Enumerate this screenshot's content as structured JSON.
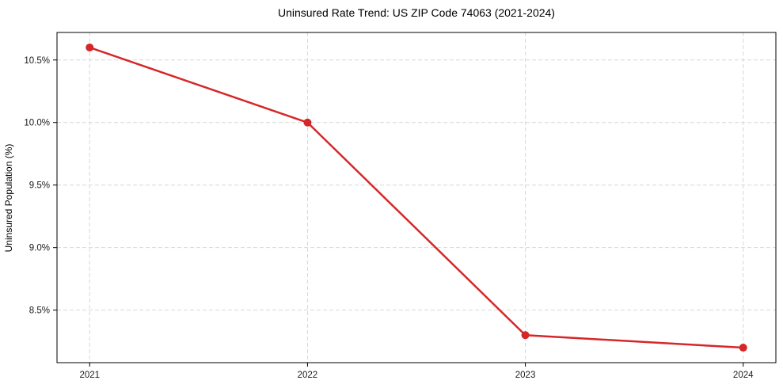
{
  "chart_data": {
    "type": "line",
    "title": "Uninsured Rate Trend: US ZIP Code 74063 (2021-2024)",
    "xlabel": "",
    "ylabel": "Uninsured Population (%)",
    "x": [
      2021,
      2022,
      2023,
      2024
    ],
    "values": [
      10.6,
      10.0,
      8.3,
      8.2
    ],
    "xlim": [
      2020.85,
      2024.15
    ],
    "ylim": [
      8.08,
      10.72
    ],
    "xticks": {
      "values": [
        2021,
        2022,
        2023,
        2024
      ],
      "labels": [
        "2021",
        "2022",
        "2023",
        "2024"
      ]
    },
    "yticks": {
      "values": [
        8.5,
        9.0,
        9.5,
        10.0,
        10.5
      ],
      "labels": [
        "8.5%",
        "9.0%",
        "9.5%",
        "10.0%",
        "10.5%"
      ]
    },
    "grid": true,
    "grid_style": "dashed",
    "legend": "none",
    "line_color": "#d62728",
    "marker": "circle",
    "marker_color": "#d62728",
    "grid_color": "#d7d7d7",
    "spine_color": "#000000",
    "text_color": "#1a1a1a"
  }
}
